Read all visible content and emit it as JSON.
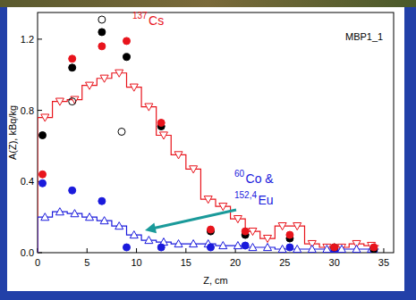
{
  "chart_data": {
    "type": "scatter",
    "x_label": "Z, cm",
    "y_label": "A(Z), kBq/kg",
    "xlim": [
      0,
      36
    ],
    "xticks": [
      0,
      5,
      10,
      15,
      20,
      25,
      30,
      35
    ],
    "ylim": [
      0,
      1.35
    ],
    "yticks": [
      {
        "value": 0,
        "label": "0.0"
      },
      0.4,
      0.8,
      1.2
    ],
    "grid": false,
    "annotations": [
      {
        "sup": "137",
        "text": "Cs",
        "color": "#e8141c"
      },
      {
        "text": "MBP1_1",
        "color": "#000000"
      },
      {
        "sup": "60",
        "text": "Co &",
        "color": "#1a1adc"
      },
      {
        "sup": "152,4",
        "text": "Eu",
        "color": "#1a1adc"
      }
    ],
    "series": [
      {
        "type": "line",
        "color": "#e8141c",
        "marker": "triangle_down_open",
        "line_style": "step",
        "x": [
          0.75,
          2.25,
          3.75,
          5.25,
          6.75,
          8.25,
          9.75,
          11.25,
          12.75,
          14.25,
          15.75,
          17.25,
          18.75,
          20.25,
          21.75,
          23.25,
          24.75,
          26.25,
          27.75,
          29.25,
          30.75,
          32.25,
          33.75
        ],
        "values": [
          0.76,
          0.85,
          0.86,
          0.94,
          0.98,
          1.01,
          0.93,
          0.82,
          0.66,
          0.55,
          0.47,
          0.3,
          0.26,
          0.19,
          0.12,
          0.08,
          0.15,
          0.15,
          0.05,
          0.03,
          0.03,
          0.05,
          0.04
        ]
      },
      {
        "type": "line",
        "color": "#1a1adc",
        "marker": "triangle_up_open",
        "line_style": "step",
        "x": [
          0.75,
          2.25,
          3.75,
          5.25,
          6.75,
          8.25,
          9.75,
          11.25,
          12.75,
          14.25,
          15.75,
          17.25,
          18.75,
          20.25,
          21.75,
          23.25,
          24.75,
          26.25,
          27.75,
          29.25,
          30.75,
          32.25,
          33.75
        ],
        "values": [
          0.2,
          0.23,
          0.22,
          0.2,
          0.18,
          0.15,
          0.1,
          0.07,
          0.06,
          0.05,
          0.05,
          0.05,
          0.04,
          0.04,
          0.03,
          0.03,
          0.02,
          0.02,
          0.02,
          0.02,
          0.02,
          0.02,
          0.02
        ]
      },
      {
        "type": "scatter",
        "color": "#1a1adc",
        "marker": "circle",
        "line_style": "none",
        "x": [
          0.5,
          3.5,
          6.5,
          9,
          12.5,
          17.5,
          21,
          25.5,
          30,
          34
        ],
        "values": [
          0.39,
          0.35,
          0.29,
          0.03,
          0.03,
          0.03,
          0.04,
          0.03,
          0.01,
          0.01
        ]
      },
      {
        "type": "scatter",
        "color": "#000000",
        "marker": "circle",
        "line_style": "none",
        "x": [
          0.5,
          3.5,
          6.5,
          9,
          12.5,
          17.5,
          21,
          25.5,
          30,
          34
        ],
        "values": [
          0.66,
          1.04,
          1.24,
          1.1,
          0.71,
          0.12,
          0.1,
          0.08,
          0.03,
          0.02
        ]
      },
      {
        "type": "scatter",
        "color": "#e8141c",
        "marker": "circle",
        "line_style": "none",
        "x": [
          0.5,
          3.5,
          6.5,
          9,
          12.5,
          17.5,
          21,
          25.5,
          30,
          34
        ],
        "values": [
          0.44,
          1.09,
          1.16,
          1.19,
          0.73,
          0.13,
          0.12,
          0.1,
          0.03,
          0.03
        ]
      },
      {
        "type": "scatter",
        "color": "#000000",
        "marker": "circle_open",
        "line_style": "none",
        "x": [
          3.5,
          6.5,
          8.5
        ],
        "values": [
          0.85,
          1.31,
          0.68
        ]
      }
    ]
  }
}
